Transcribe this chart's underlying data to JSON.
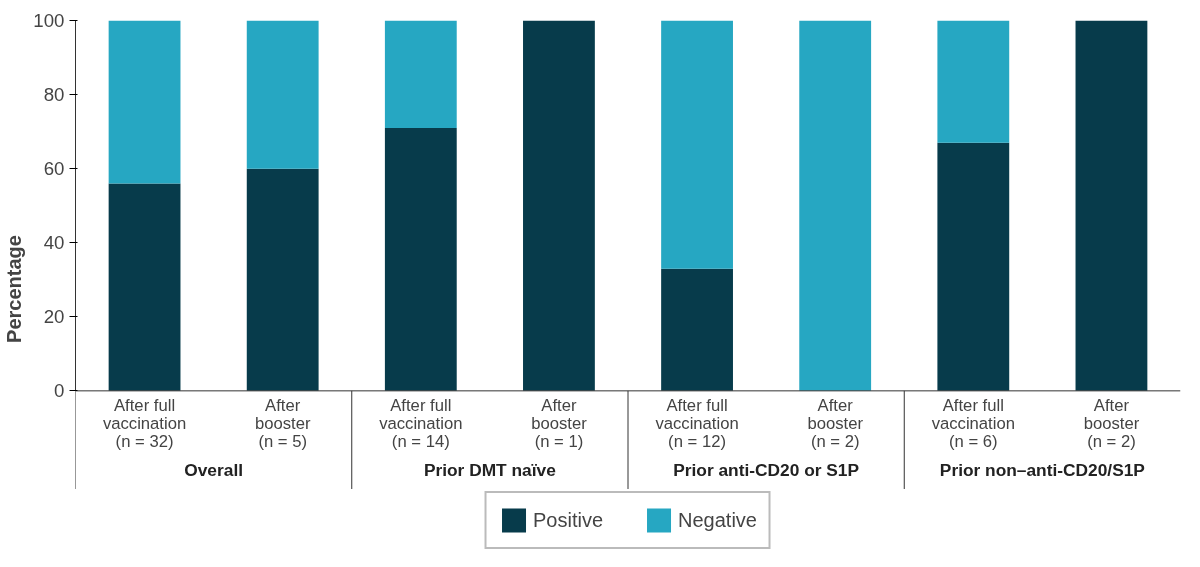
{
  "chart_data": {
    "type": "bar",
    "stacked": true,
    "ylabel": "Percentage",
    "categories": [
      "After full\nvaccination\n(n = 32)",
      "After\nbooster\n(n = 5)",
      "After full\nvaccination\n(n = 14)",
      "After\nbooster\n(n = 1)",
      "After full\nvaccination\n(n = 12)",
      "After\nbooster\n(n = 2)",
      "After full\nvaccination\n(n = 6)",
      "After\nbooster\n(n = 2)"
    ],
    "series": [
      {
        "name": "Positive",
        "color": "#073b4b",
        "values": [
          56,
          60,
          71,
          100,
          33,
          0,
          67,
          100
        ]
      },
      {
        "name": "Negative",
        "color": "#26a7c2",
        "values": [
          44,
          40,
          29,
          0,
          67,
          100,
          33,
          0
        ]
      }
    ],
    "annotations": [
      "Overall",
      "Prior DMT naïve",
      "Prior anti-CD20 or S1P",
      "Prior non–anti-CD20/S1P"
    ],
    "ylim": [
      0,
      100
    ],
    "yticks": [
      0,
      20,
      40,
      60,
      80,
      100
    ],
    "grid": false,
    "legend": "bottom"
  }
}
